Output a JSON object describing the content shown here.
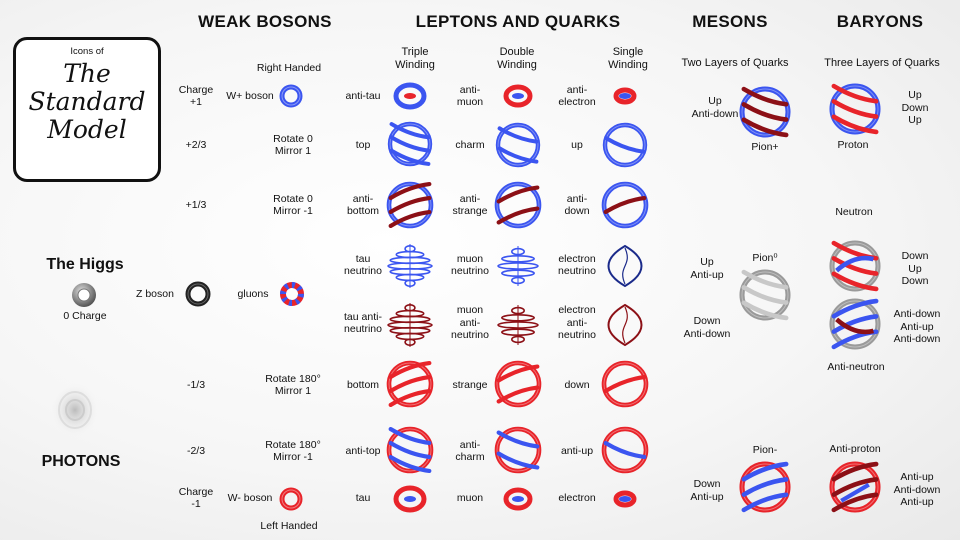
{
  "logo": {
    "small": "Icons of",
    "line1": "The",
    "line2": "Standard",
    "line3": "Model"
  },
  "headers": {
    "weak_bosons": "WEAK BOSONS",
    "leptons_quarks": "LEPTONS AND QUARKS",
    "mesons": "MESONS",
    "baryons": "BARYONS"
  },
  "subheaders": {
    "triple": [
      "Triple",
      "Winding"
    ],
    "double": [
      "Double",
      "Winding"
    ],
    "single": [
      "Single",
      "Winding"
    ],
    "mesons": "Two Layers of Quarks",
    "baryons": "Three Layers of Quarks"
  },
  "left": {
    "higgs": "The Higgs",
    "higgs_charge": "0 Charge",
    "photons": "PHOTONS",
    "z_boson": "Z boson",
    "gluons": "gluons"
  },
  "rows": [
    {
      "charge": [
        "Charge",
        "+1"
      ],
      "transform": [
        "Right Handed"
      ],
      "boson": "W+ boson",
      "triple": [
        "anti-tau"
      ],
      "double": [
        "anti-",
        "muon"
      ],
      "single": [
        "anti-",
        "electron"
      ]
    },
    {
      "charge": [
        "+2/3"
      ],
      "transform": [
        "Rotate 0",
        "Mirror 1"
      ],
      "triple": [
        "top"
      ],
      "double": [
        "charm"
      ],
      "single": [
        "up"
      ]
    },
    {
      "charge": [
        "+1/3"
      ],
      "transform": [
        "Rotate 0",
        "Mirror -1"
      ],
      "triple": [
        "anti-",
        "bottom"
      ],
      "double": [
        "anti-",
        "strange"
      ],
      "single": [
        "anti-",
        "down"
      ]
    },
    {
      "triple": [
        "tau",
        "neutrino"
      ],
      "double": [
        "muon",
        "neutrino"
      ],
      "single": [
        "electron",
        "neutrino"
      ]
    },
    {
      "triple": [
        "tau anti-",
        "neutrino"
      ],
      "double": [
        "muon",
        "anti-",
        "neutrino"
      ],
      "single": [
        "electron",
        "anti-",
        "neutrino"
      ]
    },
    {
      "charge": [
        "-1/3"
      ],
      "transform": [
        "Rotate 180°",
        "Mirror 1"
      ],
      "triple": [
        "bottom"
      ],
      "double": [
        "strange"
      ],
      "single": [
        "down"
      ]
    },
    {
      "charge": [
        "-2/3"
      ],
      "transform": [
        "Rotate 180°",
        "Mirror -1"
      ],
      "triple": [
        "anti-top"
      ],
      "double": [
        "anti-",
        "charm"
      ],
      "single": [
        "anti-up"
      ]
    },
    {
      "charge": [
        "Charge",
        "-1"
      ],
      "transform": [
        "Left Handed"
      ],
      "boson": "W- boson",
      "triple": [
        "tau"
      ],
      "double": [
        "muon"
      ],
      "single": [
        "electron"
      ]
    }
  ],
  "mesons": {
    "pion_plus": {
      "quarks": [
        "Up",
        "Anti-down"
      ],
      "name": "Pion+"
    },
    "pion_zero": {
      "name": "Pion⁰",
      "quarks_top": [
        "Up",
        "Anti-up"
      ],
      "quarks_bottom": [
        "Down",
        "Anti-down"
      ]
    },
    "pion_minus": {
      "name": "Pion-",
      "quarks": [
        "Down",
        "Anti-up"
      ]
    }
  },
  "baryons": {
    "proton": {
      "name": "Proton",
      "quarks": [
        "Up",
        "Down",
        "Up"
      ]
    },
    "neutron": {
      "name": "Neutron",
      "quarks": [
        "Down",
        "Up",
        "Down"
      ]
    },
    "anti_neutron": {
      "name": "Anti-neutron",
      "quarks": [
        "Anti-down",
        "Anti-up",
        "Anti-down"
      ]
    },
    "anti_proton": {
      "name": "Anti-proton",
      "quarks": [
        "Anti-up",
        "Anti-down",
        "Anti-up"
      ]
    }
  },
  "colors": {
    "blue": "#3b55f0",
    "red": "#e8242a",
    "dark_red": "#8c1016",
    "grey": "#9a9a9a"
  }
}
